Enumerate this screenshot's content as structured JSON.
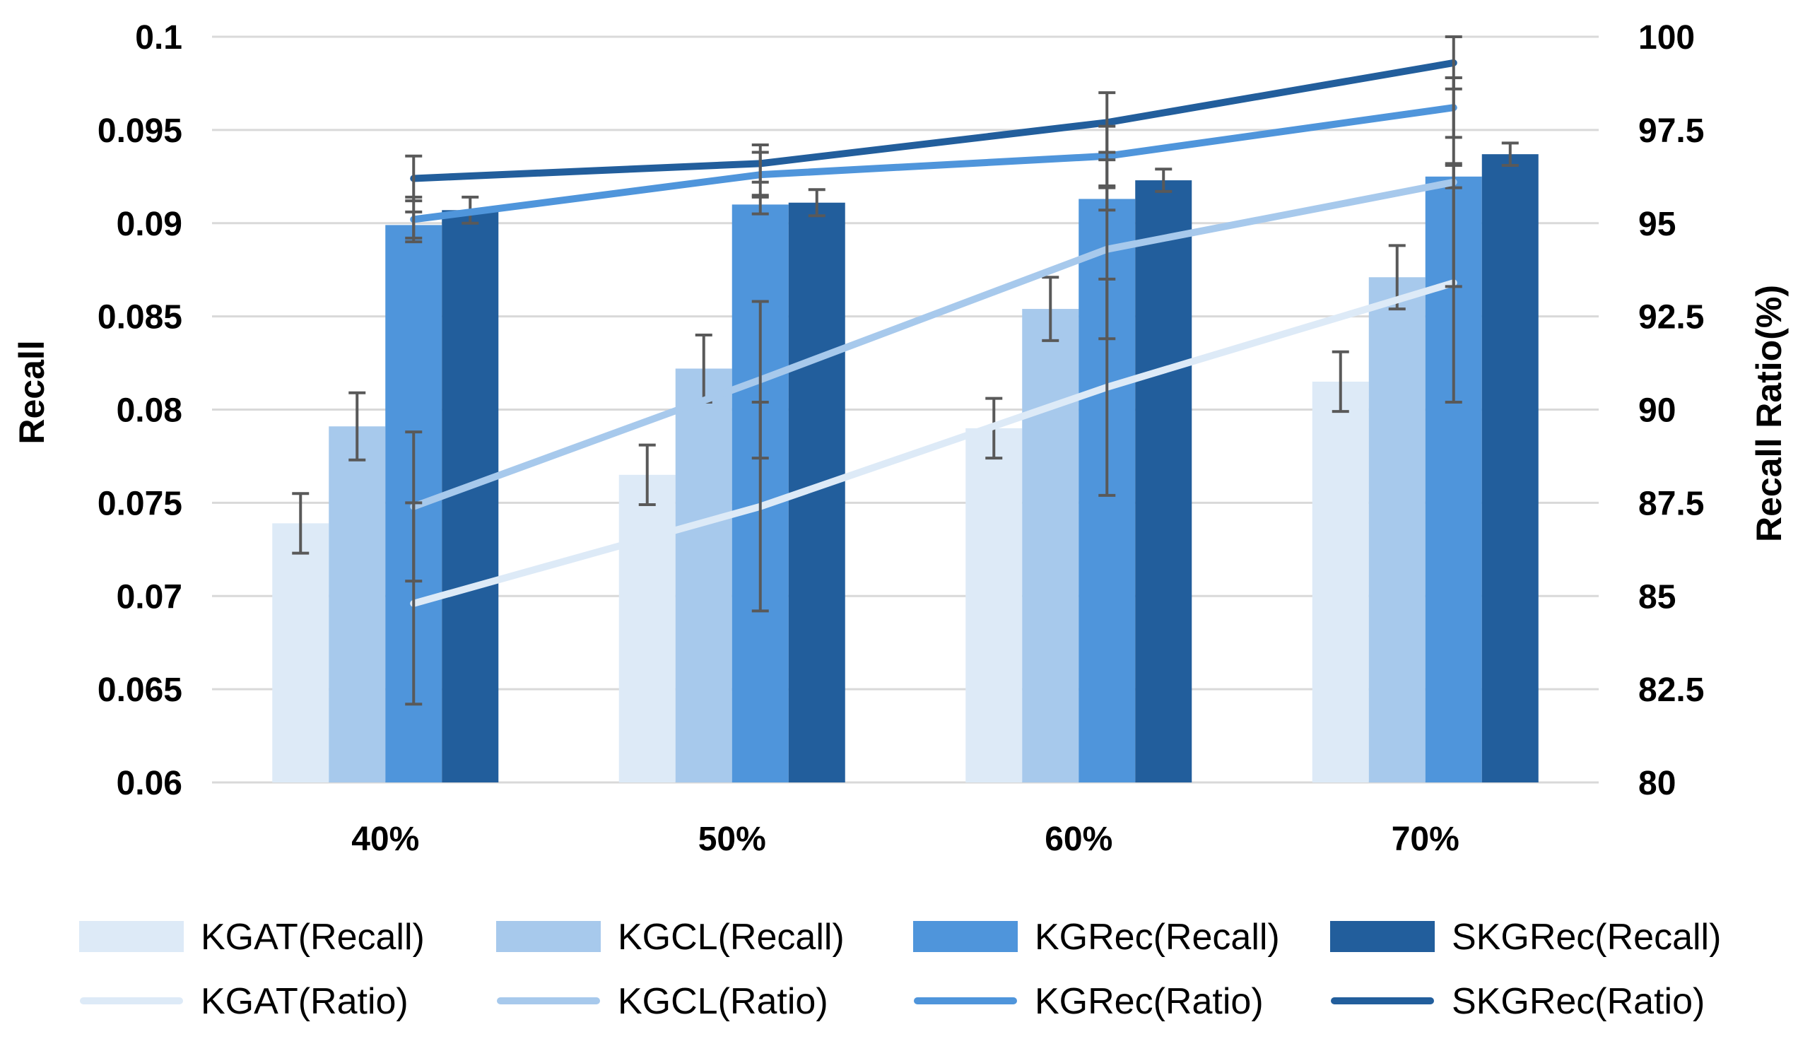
{
  "chart_data": {
    "type": "bar",
    "categories": [
      "40%",
      "50%",
      "60%",
      "70%"
    ],
    "ylabel": "Recall",
    "y2label": "Recall Ratio(%)",
    "ylim": [
      0.06,
      0.1
    ],
    "y2lim": [
      80,
      100
    ],
    "yticks": [
      "0.06",
      "0.065",
      "0.07",
      "0.075",
      "0.08",
      "0.085",
      "0.09",
      "0.095",
      "0.1"
    ],
    "y2ticks": [
      "80",
      "82.5",
      "85",
      "87.5",
      "90",
      "92.5",
      "95",
      "97.5",
      "100"
    ],
    "grid": true,
    "legend_position": "bottom",
    "bar_series": [
      {
        "name": "KGAT(Recall)",
        "color": "#DDEAF7",
        "values": [
          0.0739,
          0.0765,
          0.079,
          0.0815
        ],
        "errors": [
          0.0016,
          0.0016,
          0.0016,
          0.0016
        ]
      },
      {
        "name": "KGCL(Recall)",
        "color": "#A7C9EC",
        "values": [
          0.0791,
          0.0822,
          0.0854,
          0.0871
        ],
        "errors": [
          0.0018,
          0.0018,
          0.0017,
          0.0017
        ]
      },
      {
        "name": "KGRec(Recall)",
        "color": "#4F95DB",
        "values": [
          0.0899,
          0.091,
          0.0913,
          0.0925
        ],
        "errors": [
          0.0007,
          0.0005,
          0.0006,
          0.0006
        ]
      },
      {
        "name": "SKGRec(Recall)",
        "color": "#225E9C",
        "values": [
          0.0907,
          0.0911,
          0.0923,
          0.0937
        ],
        "errors": [
          0.0007,
          0.0007,
          0.0006,
          0.0006
        ]
      }
    ],
    "line_series": [
      {
        "name": "KGAT(Ratio)",
        "color": "#DDEAF7",
        "values": [
          84.8,
          87.4,
          90.6,
          93.4
        ],
        "errors": [
          2.7,
          2.8,
          2.9,
          3.2
        ]
      },
      {
        "name": "KGCL(Ratio)",
        "color": "#A7C9EC",
        "values": [
          87.4,
          90.8,
          94.3,
          96.1
        ],
        "errors": [
          2.0,
          2.1,
          2.4,
          2.8
        ]
      },
      {
        "name": "KGRec(Ratio)",
        "color": "#4F95DB",
        "values": [
          95.1,
          96.3,
          96.8,
          98.1
        ],
        "errors": [
          0.6,
          0.6,
          0.8,
          0.8
        ]
      },
      {
        "name": "SKGRec(Ratio)",
        "color": "#225E9C",
        "values": [
          96.2,
          96.6,
          97.7,
          99.3
        ],
        "errors": [
          0.6,
          0.5,
          0.8,
          0.7
        ]
      }
    ]
  }
}
